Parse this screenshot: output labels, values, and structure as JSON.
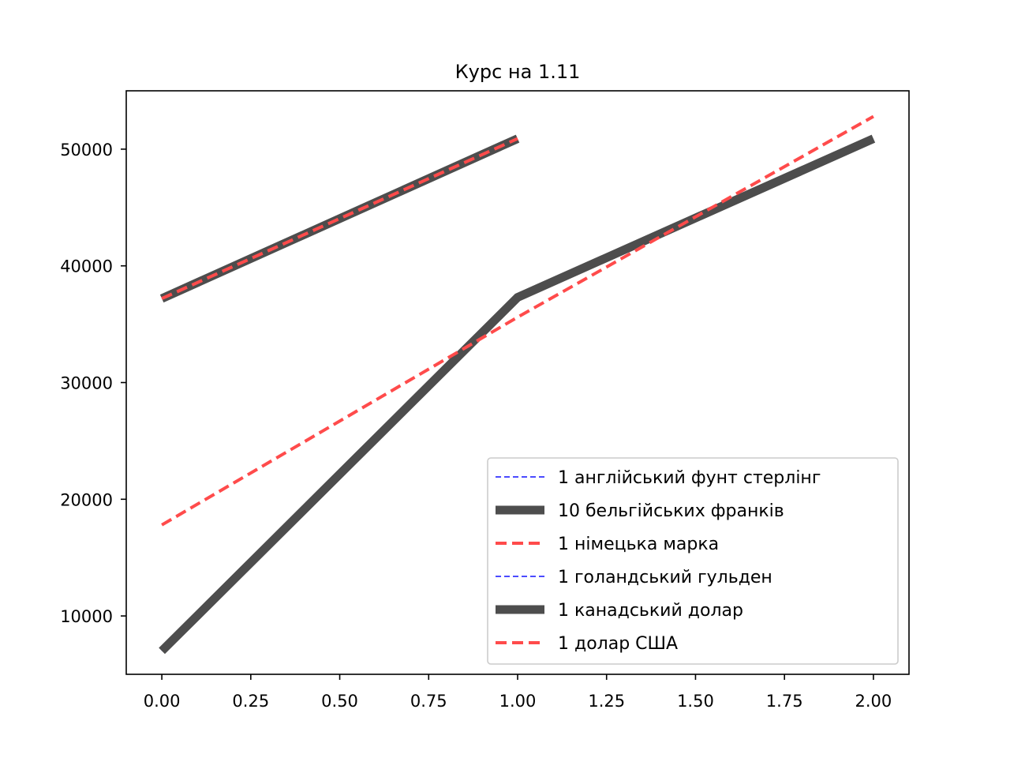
{
  "chart_data": {
    "type": "line",
    "title": "Курс на 1.11",
    "xlabel": "",
    "ylabel": "",
    "xlim": [
      -0.1,
      2.1
    ],
    "ylim": [
      5000,
      55000
    ],
    "xticks": [
      0.0,
      0.25,
      0.5,
      0.75,
      1.0,
      1.25,
      1.5,
      1.75,
      2.0
    ],
    "xtick_labels": [
      "0.00",
      "0.25",
      "0.50",
      "0.75",
      "1.00",
      "1.25",
      "1.50",
      "1.75",
      "2.00"
    ],
    "yticks": [
      10000,
      20000,
      30000,
      40000,
      50000
    ],
    "ytick_labels": [
      "10000",
      "20000",
      "30000",
      "40000",
      "50000"
    ],
    "grid": false,
    "legend_position": "lower-right",
    "series": [
      {
        "name": "1 англійський фунт стерлінг",
        "x": [
          0,
          1
        ],
        "y": [
          37200,
          50900
        ],
        "color": "#4b4bff",
        "style": "thin-dashed"
      },
      {
        "name": "10 бельгійських франків",
        "x": [
          0,
          1
        ],
        "y": [
          37200,
          50900
        ],
        "color": "#4d4d4d",
        "style": "thick-solid"
      },
      {
        "name": "1 німецька марка",
        "x": [
          0,
          1
        ],
        "y": [
          37200,
          50900
        ],
        "color": "#ff4b4b",
        "style": "dashed"
      },
      {
        "name": "1 голандський гульден",
        "x": [
          0,
          1,
          2
        ],
        "y": [
          7000,
          37300,
          50900
        ],
        "color": "#4b4bff",
        "style": "thin-dashed"
      },
      {
        "name": "1 канадський долар",
        "x": [
          0,
          1,
          2
        ],
        "y": [
          7000,
          37300,
          50900
        ],
        "color": "#4d4d4d",
        "style": "thick-solid"
      },
      {
        "name": "1 долар США",
        "x": [
          0,
          1,
          2
        ],
        "y": [
          17800,
          35600,
          52800
        ],
        "color": "#ff4b4b",
        "style": "dashed"
      }
    ]
  }
}
